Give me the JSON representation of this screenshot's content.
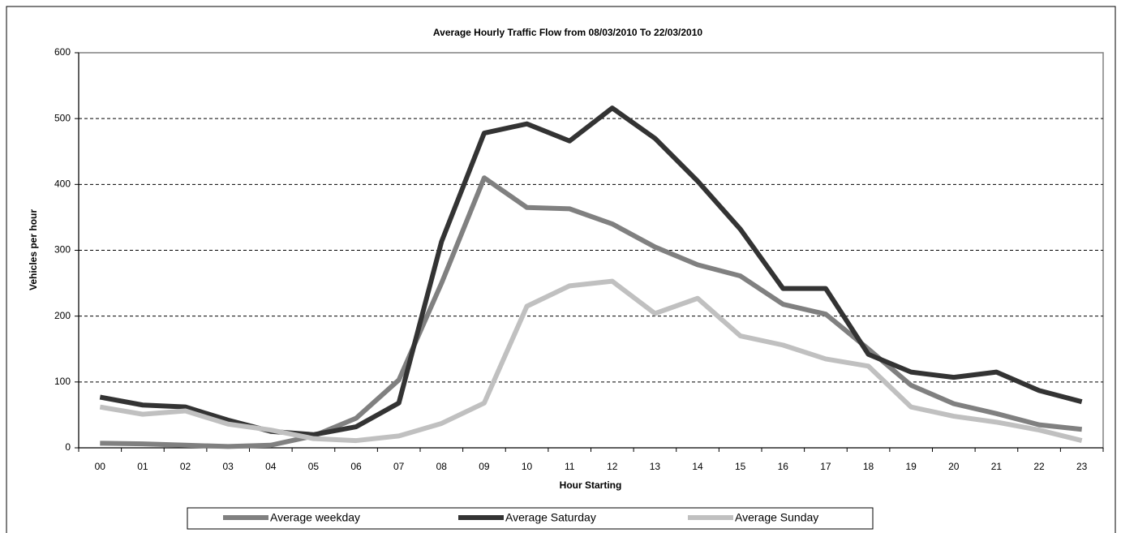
{
  "chart_data": {
    "type": "line",
    "title": "Average Hourly Traffic Flow from 08/03/2010 To 22/03/2010",
    "x_label": "Hour Starting",
    "y_label": "Vehicles per hour",
    "categories": [
      "00",
      "01",
      "02",
      "03",
      "04",
      "05",
      "06",
      "07",
      "08",
      "09",
      "10",
      "11",
      "12",
      "13",
      "14",
      "15",
      "16",
      "17",
      "18",
      "19",
      "20",
      "21",
      "22",
      "23"
    ],
    "series": [
      {
        "name": "Average weekday",
        "color": "#808080",
        "values": [
          7,
          6,
          4,
          2,
          4,
          18,
          45,
          103,
          250,
          410,
          365,
          363,
          340,
          305,
          278,
          261,
          218,
          203,
          150,
          95,
          67,
          52,
          35,
          28
        ]
      },
      {
        "name": "Average Saturday",
        "color": "#333333",
        "values": [
          77,
          65,
          62,
          42,
          25,
          20,
          32,
          68,
          313,
          478,
          492,
          466,
          516,
          470,
          405,
          332,
          242,
          242,
          142,
          115,
          107,
          115,
          87,
          70
        ]
      },
      {
        "name": "Average Sunday",
        "color": "#c0c0c0",
        "values": [
          62,
          51,
          56,
          36,
          27,
          14,
          11,
          18,
          37,
          68,
          215,
          246,
          253,
          204,
          227,
          170,
          156,
          135,
          124,
          62,
          48,
          39,
          27,
          11
        ]
      }
    ],
    "ylim": [
      0,
      600
    ],
    "yticks": [
      0,
      100,
      200,
      300,
      400,
      500,
      600
    ],
    "grid": true,
    "legend": "bottom"
  }
}
